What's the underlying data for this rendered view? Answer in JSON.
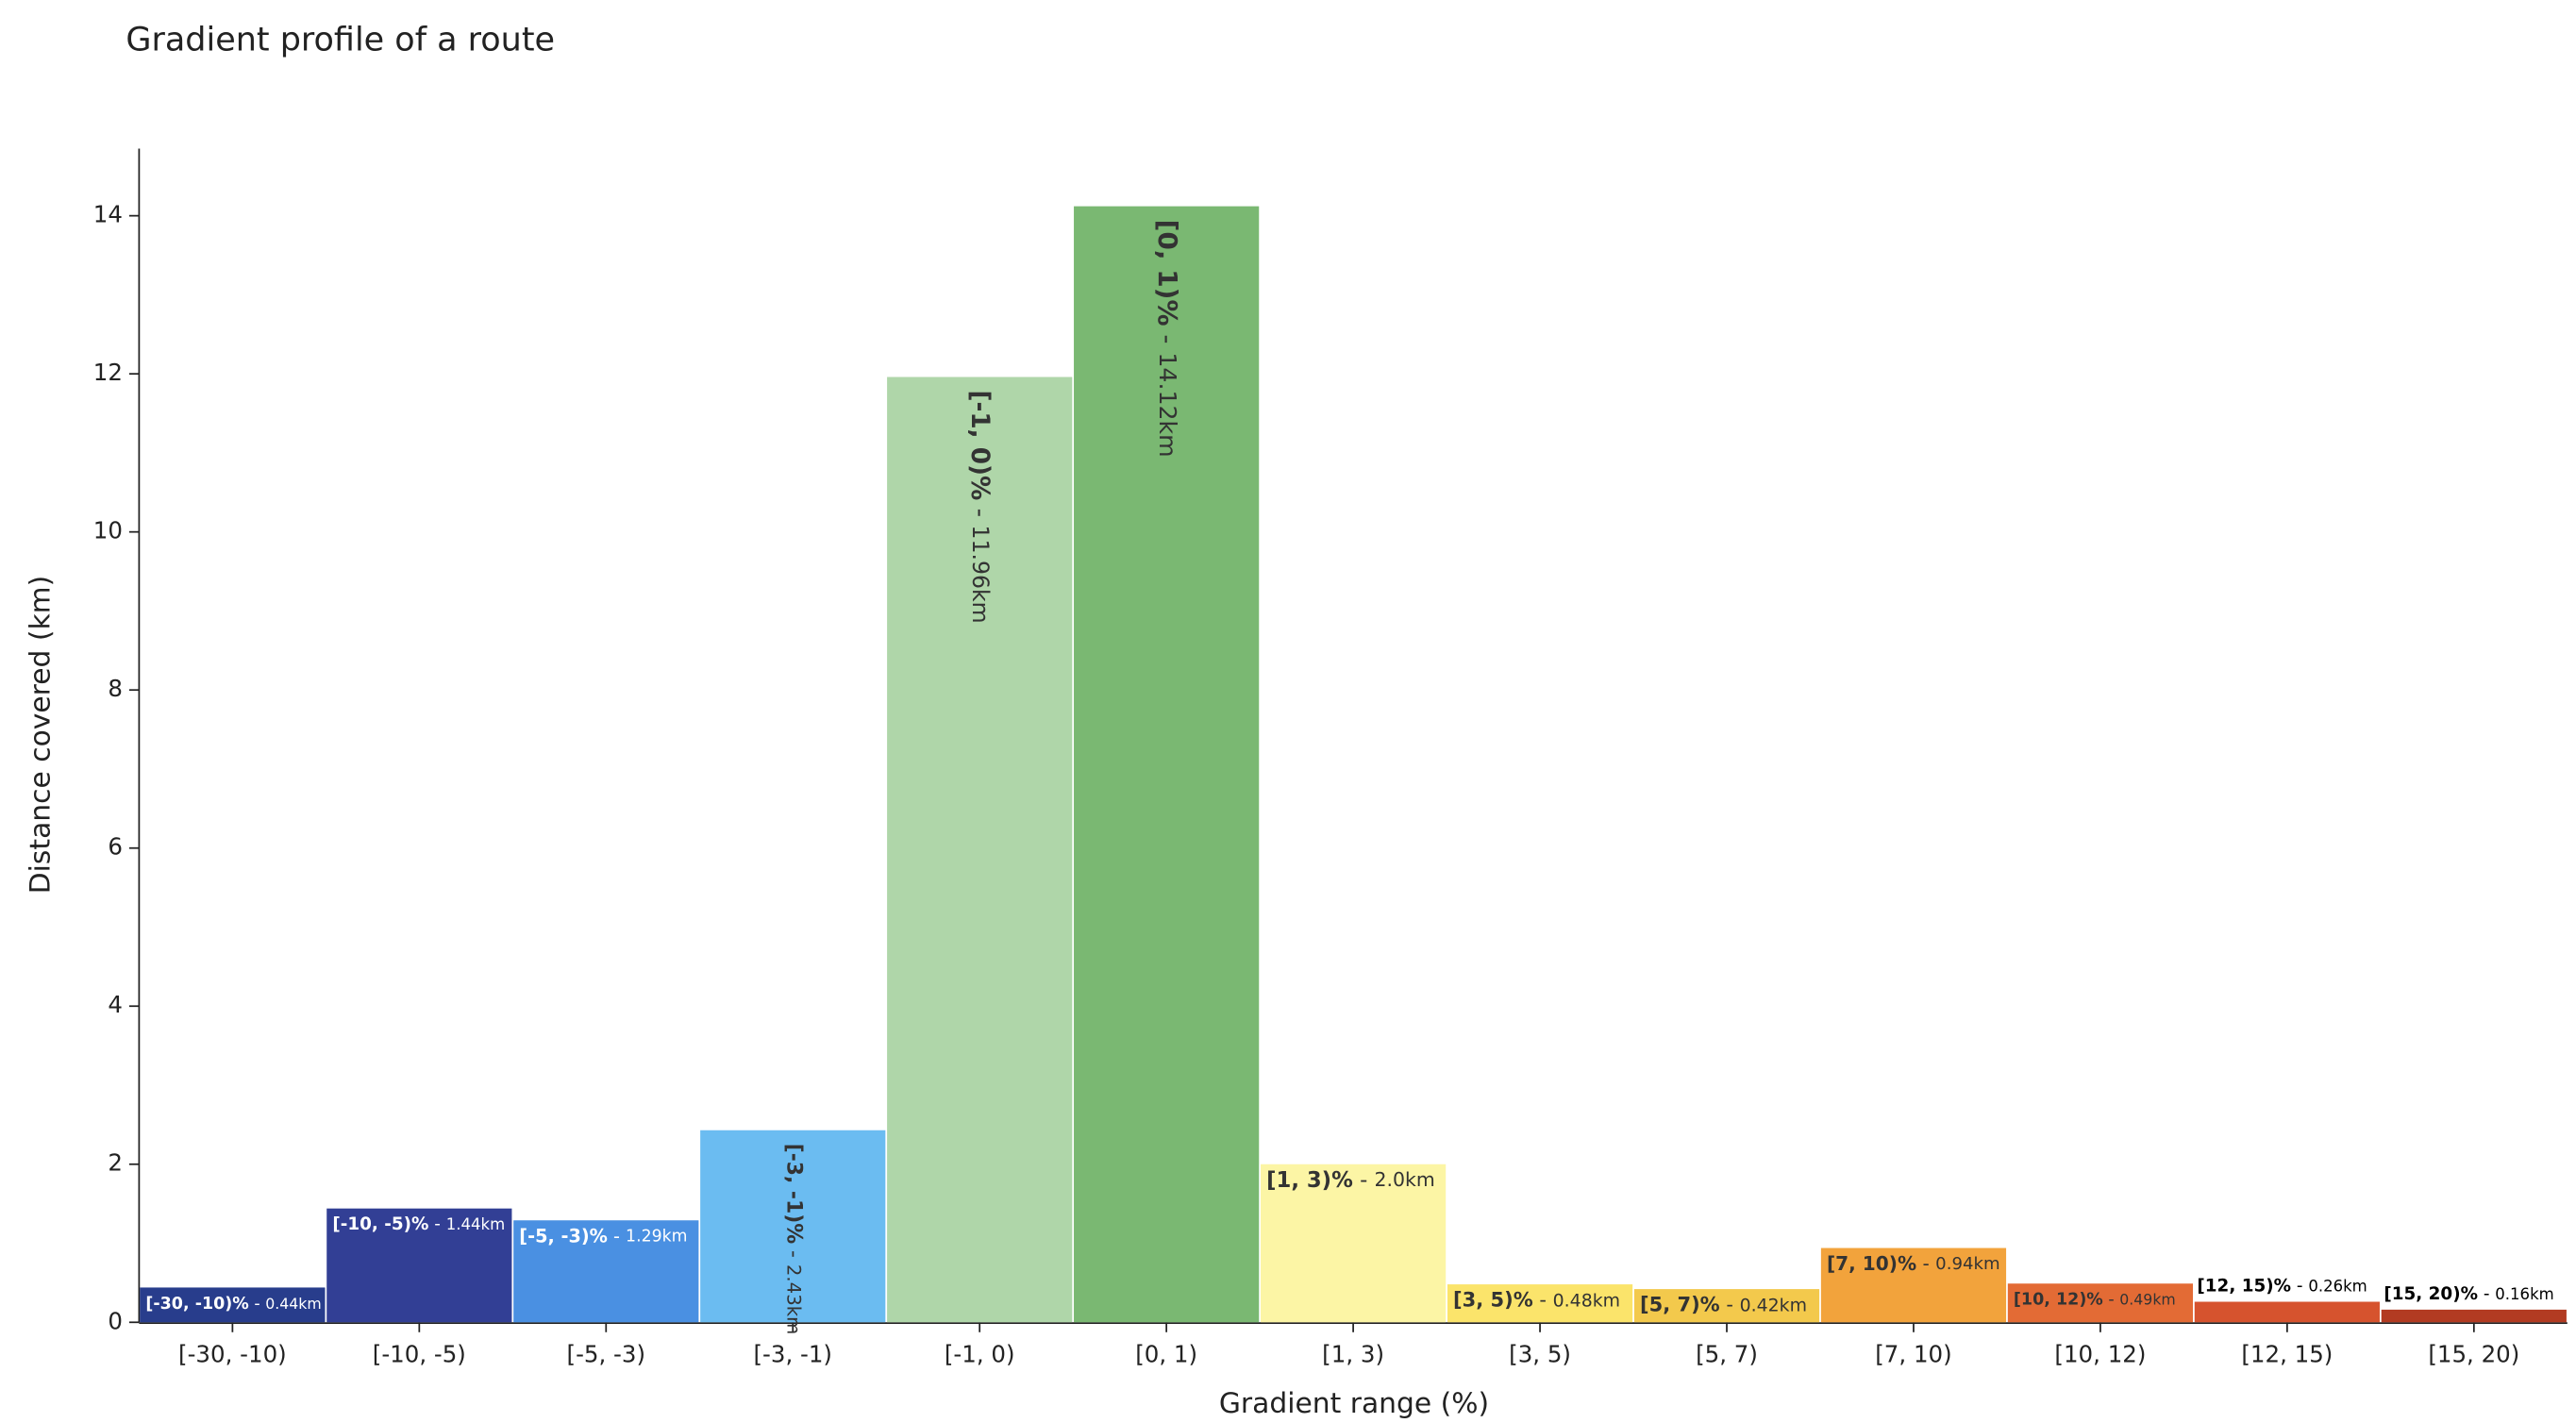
{
  "chart_data": {
    "type": "bar",
    "title": "Gradient profile of a route",
    "x_label": "Gradient range (%)",
    "y_label": "Distance covered (km)",
    "categories": [
      "[-30, -10)",
      "[-10, -5)",
      "[-5, -3)",
      "[-3, -1)",
      "[-1, 0)",
      "[0, 1)",
      "[1, 3)",
      "[3, 5)",
      "[5, 7)",
      "[7, 10)",
      "[10, 12)",
      "[12, 15)",
      "[15, 20)"
    ],
    "values": [
      0.44,
      1.44,
      1.29,
      2.43,
      11.96,
      14.12,
      2.0,
      0.48,
      0.42,
      0.94,
      0.49,
      0.26,
      0.16
    ],
    "range_labels": [
      "[-30, -10)%",
      "[-10, -5)%",
      "[-5, -3)%",
      "[-3, -1)%",
      "[-1, 0)%",
      "[0, 1)%",
      "[1, 3)%",
      "[3, 5)%",
      "[5, 7)%",
      "[7, 10)%",
      "[10, 12)%",
      "[12, 15)%",
      "[15, 20)%"
    ],
    "label_separator": " - ",
    "value_labels": [
      "0.44km",
      "1.44km",
      "1.29km",
      "2.43km",
      "11.96km",
      "14.12km",
      "2.0km",
      "0.48km",
      "0.42km",
      "0.94km",
      "0.49km",
      "0.26km",
      "0.16km"
    ],
    "colors": [
      "#283d8c",
      "#323f95",
      "#4a90e2",
      "#6bbcf1",
      "#afd6a9",
      "#7ab872",
      "#fcf5a5",
      "#fbe46b",
      "#f3c94c",
      "#f2a33c",
      "#e36b35",
      "#d6532e",
      "#b23b22"
    ],
    "ylim": [
      0,
      14.85
    ],
    "yticks": [
      0,
      2,
      4,
      6,
      8,
      10,
      12,
      14
    ],
    "grid": false
  }
}
